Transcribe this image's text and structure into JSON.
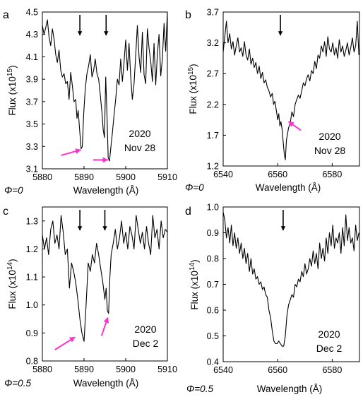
{
  "colors": {
    "line": "#000000",
    "annotation_arrow": "#ff33cc",
    "absorption_arrow": "#000000"
  },
  "chart_data": [
    {
      "panel": "a",
      "type": "line",
      "xlabel": "Wavelength (Å)",
      "ylabel": "Flux (x10",
      "ylabel_exp": "15",
      "ylabel_close": ")",
      "xlim": [
        5880,
        5910
      ],
      "ylim": [
        3.1,
        4.5
      ],
      "xticks": [
        5880,
        5890,
        5900,
        5910
      ],
      "xtick_labels": [
        "5880",
        "5890",
        "5900",
        "5910"
      ],
      "yticks": [
        3.1,
        3.3,
        3.5,
        3.7,
        3.9,
        4.1,
        4.3,
        4.5
      ],
      "ytick_labels": [
        "3.1",
        "3.3",
        "3.5",
        "3.7",
        "3.9",
        "4.1",
        "4.3",
        "4.5"
      ],
      "phase_label": "Φ=0",
      "date_year": "2020",
      "date_day": "Nov 28",
      "series": [
        {
          "x": [
            5880,
            5880.4,
            5880.8,
            5881.2,
            5881.6,
            5882,
            5882.4,
            5882.8,
            5883.2,
            5883.6,
            5884,
            5884.4,
            5884.8,
            5885.2,
            5885.6,
            5886,
            5886.4,
            5886.8,
            5887.2,
            5887.6,
            5888,
            5888.3,
            5888.6,
            5889,
            5889.3,
            5889.6,
            5889.9,
            5890.3,
            5890.7,
            5891.1,
            5891.5,
            5891.9,
            5892.3,
            5892.7,
            5893.1,
            5893.5,
            5893.9,
            5894.3,
            5894.6,
            5894.9,
            5895.2,
            5895.5,
            5895.8,
            5896.1,
            5896.4,
            5896.8,
            5897.2,
            5897.6,
            5898,
            5898.4,
            5898.8,
            5899.2,
            5899.6,
            5900,
            5900.4,
            5900.8,
            5901.2,
            5901.6,
            5902,
            5902.4,
            5902.8,
            5903.2,
            5903.6,
            5904,
            5904.4,
            5904.8,
            5905.2,
            5905.6,
            5906,
            5906.4,
            5906.8,
            5907.2,
            5907.6,
            5908,
            5908.4,
            5908.8,
            5909.2,
            5909.6,
            5910
          ],
          "y": [
            4.38,
            4.3,
            4.36,
            4.43,
            4.28,
            4.2,
            4.35,
            4.26,
            4.12,
            4.05,
            4.16,
            3.98,
            3.92,
            3.95,
            3.86,
            3.88,
            3.72,
            3.96,
            3.84,
            3.7,
            3.72,
            3.55,
            3.62,
            3.42,
            3.28,
            3.3,
            3.58,
            3.82,
            3.95,
            4.02,
            4.12,
            3.92,
            3.98,
            4.08,
            3.95,
            3.9,
            3.76,
            3.6,
            3.45,
            3.38,
            3.92,
            3.6,
            3.2,
            3.17,
            3.28,
            3.42,
            3.58,
            3.72,
            3.9,
            3.85,
            4.08,
            3.88,
            4.05,
            4.25,
            3.98,
            4.22,
            3.92,
            3.72,
            3.86,
            4.12,
            4.38,
            4.1,
            3.96,
            4.32,
            3.94,
            3.86,
            4.35,
            4.18,
            4.06,
            3.88,
            4.22,
            3.85,
            4.12,
            4.3,
            3.93,
            4.08,
            4.4,
            4.15,
            4.5
          ]
        }
      ],
      "absorption_arrows_x": [
        5889,
        5895.3
      ],
      "pink_arrows": [
        {
          "from": [
            5884.5,
            3.22
          ],
          "to": [
            5889.2,
            3.27
          ]
        },
        {
          "from": [
            5892.2,
            3.18
          ],
          "to": [
            5895.7,
            3.18
          ]
        }
      ]
    },
    {
      "panel": "b",
      "type": "line",
      "xlabel": "Wavelength (Å)",
      "ylabel": "Flux (x10",
      "ylabel_exp": "15",
      "ylabel_close": ")",
      "xlim": [
        6540,
        6590
      ],
      "ylim": [
        1.2,
        3.7
      ],
      "xticks": [
        6540,
        6560,
        6580
      ],
      "xtick_labels": [
        "6540",
        "6560",
        "6580"
      ],
      "yticks": [
        1.2,
        1.7,
        2.2,
        2.7,
        3.2,
        3.7
      ],
      "ytick_labels": [
        "1.2",
        "1.7",
        "2.2",
        "2.7",
        "3.2",
        "3.7"
      ],
      "phase_label": "Φ=0",
      "date_year": "2020",
      "date_day": "Nov 28",
      "series": [
        {
          "x": [
            6540,
            6540.6,
            6541.2,
            6541.8,
            6542.4,
            6543,
            6543.6,
            6544.2,
            6544.8,
            6545.4,
            6546,
            6546.6,
            6547.2,
            6547.8,
            6548.4,
            6549,
            6549.6,
            6550.2,
            6550.8,
            6551.4,
            6552,
            6552.6,
            6553.2,
            6553.8,
            6554.4,
            6555,
            6555.6,
            6556.2,
            6556.8,
            6557.4,
            6558,
            6558.5,
            6559,
            6559.5,
            6560,
            6560.4,
            6560.8,
            6561.2,
            6561.6,
            6562,
            6562.4,
            6562.8,
            6563.2,
            6563.6,
            6564,
            6564.6,
            6565.2,
            6565.8,
            6566.4,
            6567,
            6567.6,
            6568.2,
            6568.8,
            6569.4,
            6570,
            6570.6,
            6571.2,
            6571.8,
            6572.4,
            6573,
            6573.6,
            6574.2,
            6574.8,
            6575.4,
            6576,
            6576.6,
            6577.2,
            6577.8,
            6578.4,
            6579,
            6579.6,
            6580.2,
            6580.8,
            6581.4,
            6582,
            6582.6,
            6583.2,
            6583.8,
            6584.4,
            6585,
            6585.6,
            6586.2,
            6586.8,
            6587.4,
            6588,
            6588.6,
            6589.2,
            6589.8
          ],
          "y": [
            3.05,
            3.3,
            3.55,
            3.2,
            3.35,
            3.1,
            3.22,
            3.0,
            3.15,
            3.28,
            3.05,
            3.12,
            2.98,
            3.22,
            3.0,
            2.92,
            3.1,
            2.85,
            2.95,
            2.8,
            2.88,
            2.7,
            2.82,
            2.62,
            2.72,
            2.55,
            2.6,
            2.48,
            2.42,
            2.32,
            2.38,
            2.2,
            2.25,
            2.1,
            1.95,
            2.05,
            1.85,
            1.92,
            1.8,
            1.6,
            1.4,
            1.3,
            1.62,
            1.72,
            1.82,
            1.9,
            2.08,
            2.0,
            2.2,
            2.28,
            2.35,
            2.3,
            2.42,
            2.55,
            2.5,
            2.62,
            2.68,
            2.58,
            2.75,
            2.7,
            2.9,
            2.78,
            3.0,
            2.95,
            3.15,
            3.05,
            3.22,
            2.98,
            3.3,
            3.1,
            3.05,
            3.2,
            3.0,
            3.12,
            2.95,
            3.25,
            3.05,
            3.15,
            2.98,
            3.08,
            3.2,
            3.0,
            3.12,
            3.28,
            3.05,
            3.15,
            3.55,
            3.0
          ]
        }
      ],
      "absorption_arrows_x": [
        6561
      ],
      "pink_arrows": [
        {
          "from": [
            6568.5,
            1.78
          ],
          "to": [
            6564,
            1.92
          ]
        }
      ]
    },
    {
      "panel": "c",
      "type": "line",
      "xlabel": "Wavelength (Å)",
      "ylabel": "Flux (x10",
      "ylabel_exp": "14",
      "ylabel_close": ")",
      "xlim": [
        5880,
        5910
      ],
      "ylim": [
        0.8,
        1.35
      ],
      "xticks": [
        5880,
        5890,
        5900,
        5910
      ],
      "xtick_labels": [
        "5880",
        "5890",
        "5900",
        "5910"
      ],
      "yticks": [
        0.8,
        0.9,
        1.0,
        1.1,
        1.2,
        1.3
      ],
      "ytick_labels": [
        "0.8",
        "0.9",
        "1.0",
        "1.1",
        "1.2",
        "1.3"
      ],
      "phase_label": "Φ=0.5",
      "date_year": "2020",
      "date_day": "Dec 2",
      "series": [
        {
          "x": [
            5880,
            5880.5,
            5881,
            5881.5,
            5882,
            5882.5,
            5883,
            5883.5,
            5884,
            5884.5,
            5885,
            5885.5,
            5886,
            5886.5,
            5887,
            5887.5,
            5888,
            5888.5,
            5889,
            5889.5,
            5890,
            5890.5,
            5891,
            5891.5,
            5892,
            5892.5,
            5893,
            5893.5,
            5894,
            5894.5,
            5895,
            5895.3,
            5895.6,
            5895.9,
            5896.2,
            5896.5,
            5897,
            5897.5,
            5898,
            5898.5,
            5899,
            5899.5,
            5900,
            5900.5,
            5901,
            5901.5,
            5902,
            5902.5,
            5903,
            5903.5,
            5904,
            5904.5,
            5905,
            5905.5,
            5906,
            5906.5,
            5907,
            5907.5,
            5908,
            5908.5,
            5909,
            5909.5,
            5910
          ],
          "y": [
            1.25,
            1.2,
            1.24,
            1.18,
            1.27,
            1.3,
            1.22,
            1.25,
            1.2,
            1.32,
            1.26,
            1.18,
            1.2,
            1.06,
            1.15,
            1.12,
            1.08,
            1.02,
            0.95,
            0.9,
            0.87,
            1.0,
            1.15,
            1.12,
            1.18,
            1.15,
            1.22,
            1.18,
            1.13,
            1.08,
            1.02,
            1.06,
            0.98,
            0.97,
            1.1,
            1.18,
            1.22,
            1.27,
            1.2,
            1.24,
            1.3,
            1.22,
            1.26,
            1.2,
            1.28,
            1.25,
            1.2,
            1.32,
            1.27,
            1.22,
            1.26,
            1.2,
            1.28,
            1.22,
            1.18,
            1.32,
            1.24,
            1.27,
            1.2,
            1.3,
            1.24,
            1.27,
            1.26
          ]
        }
      ],
      "absorption_arrows_x": [
        5889,
        5895
      ],
      "pink_arrows": [
        {
          "from": [
            5883,
            0.84
          ],
          "to": [
            5887.8,
            0.885
          ]
        },
        {
          "from": [
            5894.2,
            0.89
          ],
          "to": [
            5895.7,
            0.955
          ]
        }
      ]
    },
    {
      "panel": "d",
      "type": "line",
      "xlabel": "Wavelength (Å)",
      "ylabel": "Flux (x10",
      "ylabel_exp": "14",
      "ylabel_close": ")",
      "xlim": [
        6540,
        6590
      ],
      "ylim": [
        0.4,
        1.0
      ],
      "xticks": [
        6540,
        6560,
        6580
      ],
      "xtick_labels": [
        "6540",
        "6560",
        "6580"
      ],
      "yticks": [
        0.4,
        0.5,
        0.6,
        0.7,
        0.8,
        0.9,
        1.0
      ],
      "ytick_labels": [
        "0.4",
        "0.5",
        "0.6",
        "0.7",
        "0.8",
        "0.9",
        "1.0"
      ],
      "phase_label": "Φ=0.5",
      "date_year": "2020",
      "date_day": "Dec 2",
      "series": [
        {
          "x": [
            6540,
            6540.6,
            6541.2,
            6541.8,
            6542.4,
            6543,
            6543.6,
            6544.2,
            6544.8,
            6545.4,
            6546,
            6546.6,
            6547.2,
            6547.8,
            6548.4,
            6549,
            6549.6,
            6550.2,
            6550.8,
            6551.4,
            6552,
            6552.6,
            6553.2,
            6553.8,
            6554.4,
            6555,
            6555.6,
            6556.2,
            6556.8,
            6557.4,
            6558,
            6558.6,
            6559.2,
            6559.8,
            6560.4,
            6561,
            6561.6,
            6562.2,
            6562.8,
            6563.4,
            6564,
            6564.6,
            6565.2,
            6565.8,
            6566.4,
            6567,
            6567.6,
            6568.2,
            6568.8,
            6569.4,
            6570,
            6570.6,
            6571.2,
            6571.8,
            6572.4,
            6573,
            6573.6,
            6574.2,
            6574.8,
            6575.4,
            6576,
            6576.6,
            6577.2,
            6577.8,
            6578.4,
            6579,
            6579.6,
            6580.2,
            6580.8,
            6581.4,
            6582,
            6582.6,
            6583.2,
            6583.8,
            6584.4,
            6585,
            6585.6,
            6586.2,
            6586.8,
            6587.4,
            6588,
            6588.6,
            6589.2,
            6589.8
          ],
          "y": [
            0.98,
            0.95,
            0.88,
            0.92,
            0.86,
            0.93,
            0.85,
            0.9,
            0.84,
            0.88,
            0.82,
            0.86,
            0.8,
            0.84,
            0.78,
            0.82,
            0.75,
            0.8,
            0.74,
            0.76,
            0.72,
            0.73,
            0.7,
            0.71,
            0.68,
            0.69,
            0.66,
            0.65,
            0.6,
            0.57,
            0.52,
            0.48,
            0.47,
            0.47,
            0.48,
            0.47,
            0.46,
            0.46,
            0.5,
            0.58,
            0.62,
            0.64,
            0.66,
            0.65,
            0.7,
            0.69,
            0.72,
            0.71,
            0.75,
            0.73,
            0.78,
            0.74,
            0.76,
            0.8,
            0.77,
            0.83,
            0.78,
            0.82,
            0.76,
            0.86,
            0.8,
            0.84,
            0.79,
            0.88,
            0.82,
            0.9,
            0.85,
            0.93,
            0.84,
            0.88,
            0.86,
            0.9,
            0.82,
            0.92,
            0.85,
            0.97,
            0.87,
            0.92,
            0.86,
            0.88,
            0.83,
            0.93,
            0.87,
            0.9
          ]
        }
      ],
      "absorption_arrows_x": [
        6562
      ],
      "pink_arrows": []
    }
  ]
}
